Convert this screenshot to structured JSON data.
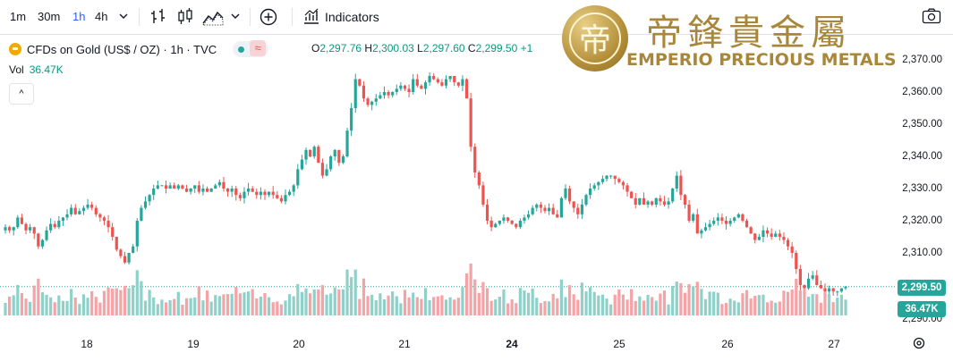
{
  "toolbar": {
    "timeframes": [
      "1m",
      "30m",
      "1h",
      "4h"
    ],
    "active_timeframe": "1h",
    "indicators_label": "Indicators",
    "icons": [
      "chevron-down-icon",
      "bar-chart-icon",
      "candlestick-icon",
      "area-chart-icon",
      "chevron-down-icon",
      "add-circle-icon",
      "indicators-icon",
      "camera-icon"
    ]
  },
  "legend": {
    "symbol": "CFDs on Gold (US$ / OZ) · 1h · TVC",
    "open_label": "O",
    "open": "2,297.76",
    "high_label": "H",
    "high": "2,300.03",
    "low_label": "L",
    "low": "2,297.60",
    "close_label": "C",
    "close": "2,299.50",
    "change": "+1",
    "vol_label": "Vol",
    "vol_value": "36.47K",
    "collapse_glyph": "^"
  },
  "watermark": {
    "chinese_name": "帝鋒貴金屬",
    "english_name": "EMPERIO PRECIOUS METALS",
    "emblem_glyph": "帝"
  },
  "price_axis": {
    "labels": [
      "2,370.00",
      "2,360.00",
      "2,350.00",
      "2,340.00",
      "2,330.00",
      "2,320.00",
      "2,310.00",
      "2,290.00"
    ],
    "last_price_tag": "2,299.50",
    "last_volume_tag": "36.47K"
  },
  "time_axis": {
    "labels": [
      "18",
      "19",
      "20",
      "21",
      "24",
      "25",
      "26",
      "27"
    ],
    "bold_label": "24"
  },
  "colors": {
    "up": "#26a69a",
    "down": "#ef5350",
    "up_volume": "#8fd1c9",
    "down_volume": "#f5a3a6",
    "accent": "#2962ff",
    "logo_gold": "#a8873a"
  },
  "chart_data": {
    "type": "candlestick",
    "x_labels": [
      "18",
      "19",
      "20",
      "21",
      "24",
      "25",
      "26",
      "27"
    ],
    "ylim": [
      2290,
      2372
    ],
    "close": [
      2318,
      2317,
      2318,
      2321,
      2319,
      2317,
      2318,
      2316,
      2312,
      2314,
      2317,
      2319,
      2318,
      2320,
      2321,
      2322,
      2324,
      2322,
      2323,
      2324,
      2325,
      2324,
      2322,
      2321,
      2320,
      2318,
      2315,
      2311,
      2309,
      2307,
      2310,
      2312,
      2320,
      2324,
      2326,
      2328,
      2330,
      2331,
      2331,
      2330,
      2331,
      2330,
      2331,
      2330,
      2329,
      2330,
      2331,
      2329,
      2330,
      2329,
      2330,
      2331,
      2332,
      2330,
      2329,
      2330,
      2328,
      2327,
      2329,
      2330,
      2329,
      2328,
      2329,
      2328,
      2329,
      2328,
      2327,
      2326,
      2328,
      2329,
      2331,
      2336,
      2339,
      2342,
      2340,
      2343,
      2338,
      2334,
      2336,
      2340,
      2342,
      2338,
      2340,
      2348,
      2355,
      2364,
      2362,
      2358,
      2356,
      2357,
      2358,
      2359,
      2360,
      2359,
      2360,
      2361,
      2362,
      2361,
      2360,
      2364,
      2362,
      2361,
      2363,
      2365,
      2364,
      2363,
      2362,
      2364,
      2365,
      2363,
      2362,
      2364,
      2358,
      2343,
      2335,
      2331,
      2325,
      2320,
      2318,
      2319,
      2320,
      2321,
      2320,
      2319,
      2318,
      2320,
      2321,
      2322,
      2324,
      2325,
      2324,
      2323,
      2324,
      2322,
      2321,
      2327,
      2330,
      2326,
      2324,
      2322,
      2325,
      2328,
      2330,
      2331,
      2332,
      2333,
      2334,
      2334,
      2333,
      2332,
      2331,
      2329,
      2327,
      2325,
      2327,
      2325,
      2326,
      2325,
      2327,
      2326,
      2325,
      2326,
      2330,
      2334,
      2328,
      2325,
      2320,
      2322,
      2316,
      2317,
      2318,
      2319,
      2320,
      2321,
      2320,
      2319,
      2320,
      2321,
      2322,
      2320,
      2318,
      2316,
      2314,
      2315,
      2317,
      2316,
      2315,
      2316,
      2315,
      2314,
      2312,
      2310,
      2305,
      2300,
      2299,
      2302,
      2303,
      2300,
      2299,
      2298,
      2299,
      2298,
      2298,
      2299,
      2299.5
    ],
    "volume_note": "volume histogram bars below price, scaled 0-max",
    "last_price": 2299.5,
    "last_volume": "36.47K"
  }
}
